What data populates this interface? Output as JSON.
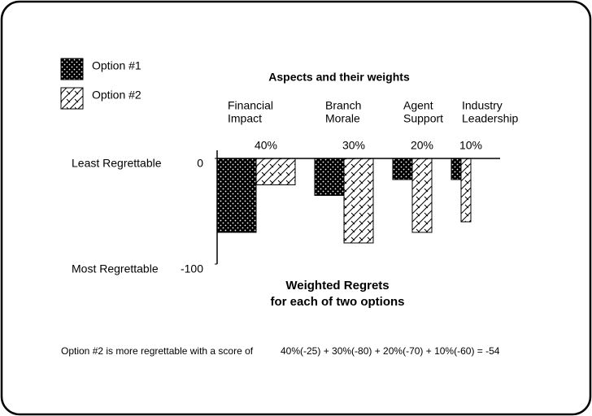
{
  "chart_data": {
    "type": "bar",
    "title": "Aspects and their weights",
    "subtitle": [
      "Weighted Regrets",
      "for each of two options"
    ],
    "categories": [
      [
        "Financial",
        "Impact"
      ],
      [
        "Branch",
        "Morale"
      ],
      [
        "Agent",
        "Support"
      ],
      [
        "Industry",
        "Leadership"
      ]
    ],
    "weights": [
      40,
      30,
      20,
      10
    ],
    "weight_labels": [
      "40%",
      "30%",
      "20%",
      "10%"
    ],
    "series": [
      {
        "name": "Option #1",
        "pattern": "dots",
        "values": [
          -70,
          -35,
          -20,
          -20
        ]
      },
      {
        "name": "Option #2",
        "pattern": "bricks",
        "values": [
          -25,
          -80,
          -70,
          -60
        ]
      }
    ],
    "ylim": [
      -100,
      0
    ],
    "yticks": [
      -100,
      0
    ],
    "y_descriptions": [
      "Most Regrettable",
      "Least Regrettable"
    ],
    "annotations": [
      "Option #2 is more regrettable with a score of",
      "40%(-25) + 30%(-80) + 20%(-70) + 10%(-60) = -54"
    ]
  }
}
